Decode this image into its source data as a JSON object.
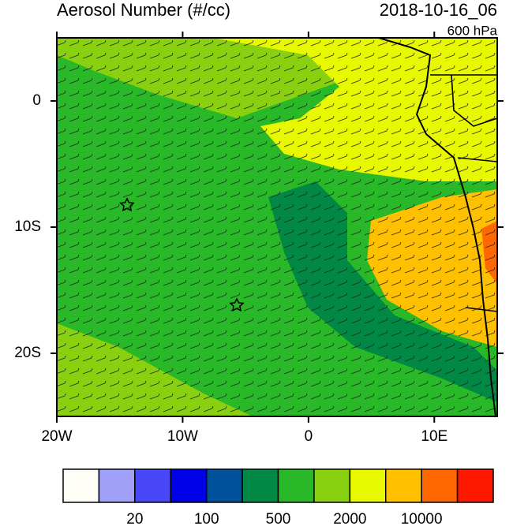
{
  "map": {
    "title": "Aerosol Number (#/cc)",
    "time": "2018-10-16_06",
    "level": "600 hPa",
    "lonlim": [
      -20,
      15
    ],
    "latlim": [
      -25,
      5
    ],
    "lon_ticks": [
      {
        "value": -20,
        "label": "20W"
      },
      {
        "value": -10,
        "label": "10W"
      },
      {
        "value": 0,
        "label": "0"
      },
      {
        "value": 10,
        "label": "10E"
      }
    ],
    "lat_ticks": [
      {
        "value": 0,
        "label": "0"
      },
      {
        "value": -10,
        "label": "10S"
      },
      {
        "value": -20,
        "label": "20S"
      }
    ],
    "colorbar": {
      "colors": [
        "#fffff8",
        "#a0a0f8",
        "#4848f8",
        "#0000e8",
        "#00509a",
        "#008844",
        "#28b828",
        "#88d010",
        "#e8f800",
        "#ffc000",
        "#ff6800",
        "#ff1800"
      ],
      "ticks": [
        20,
        100,
        500,
        2000,
        10000
      ]
    }
  }
}
